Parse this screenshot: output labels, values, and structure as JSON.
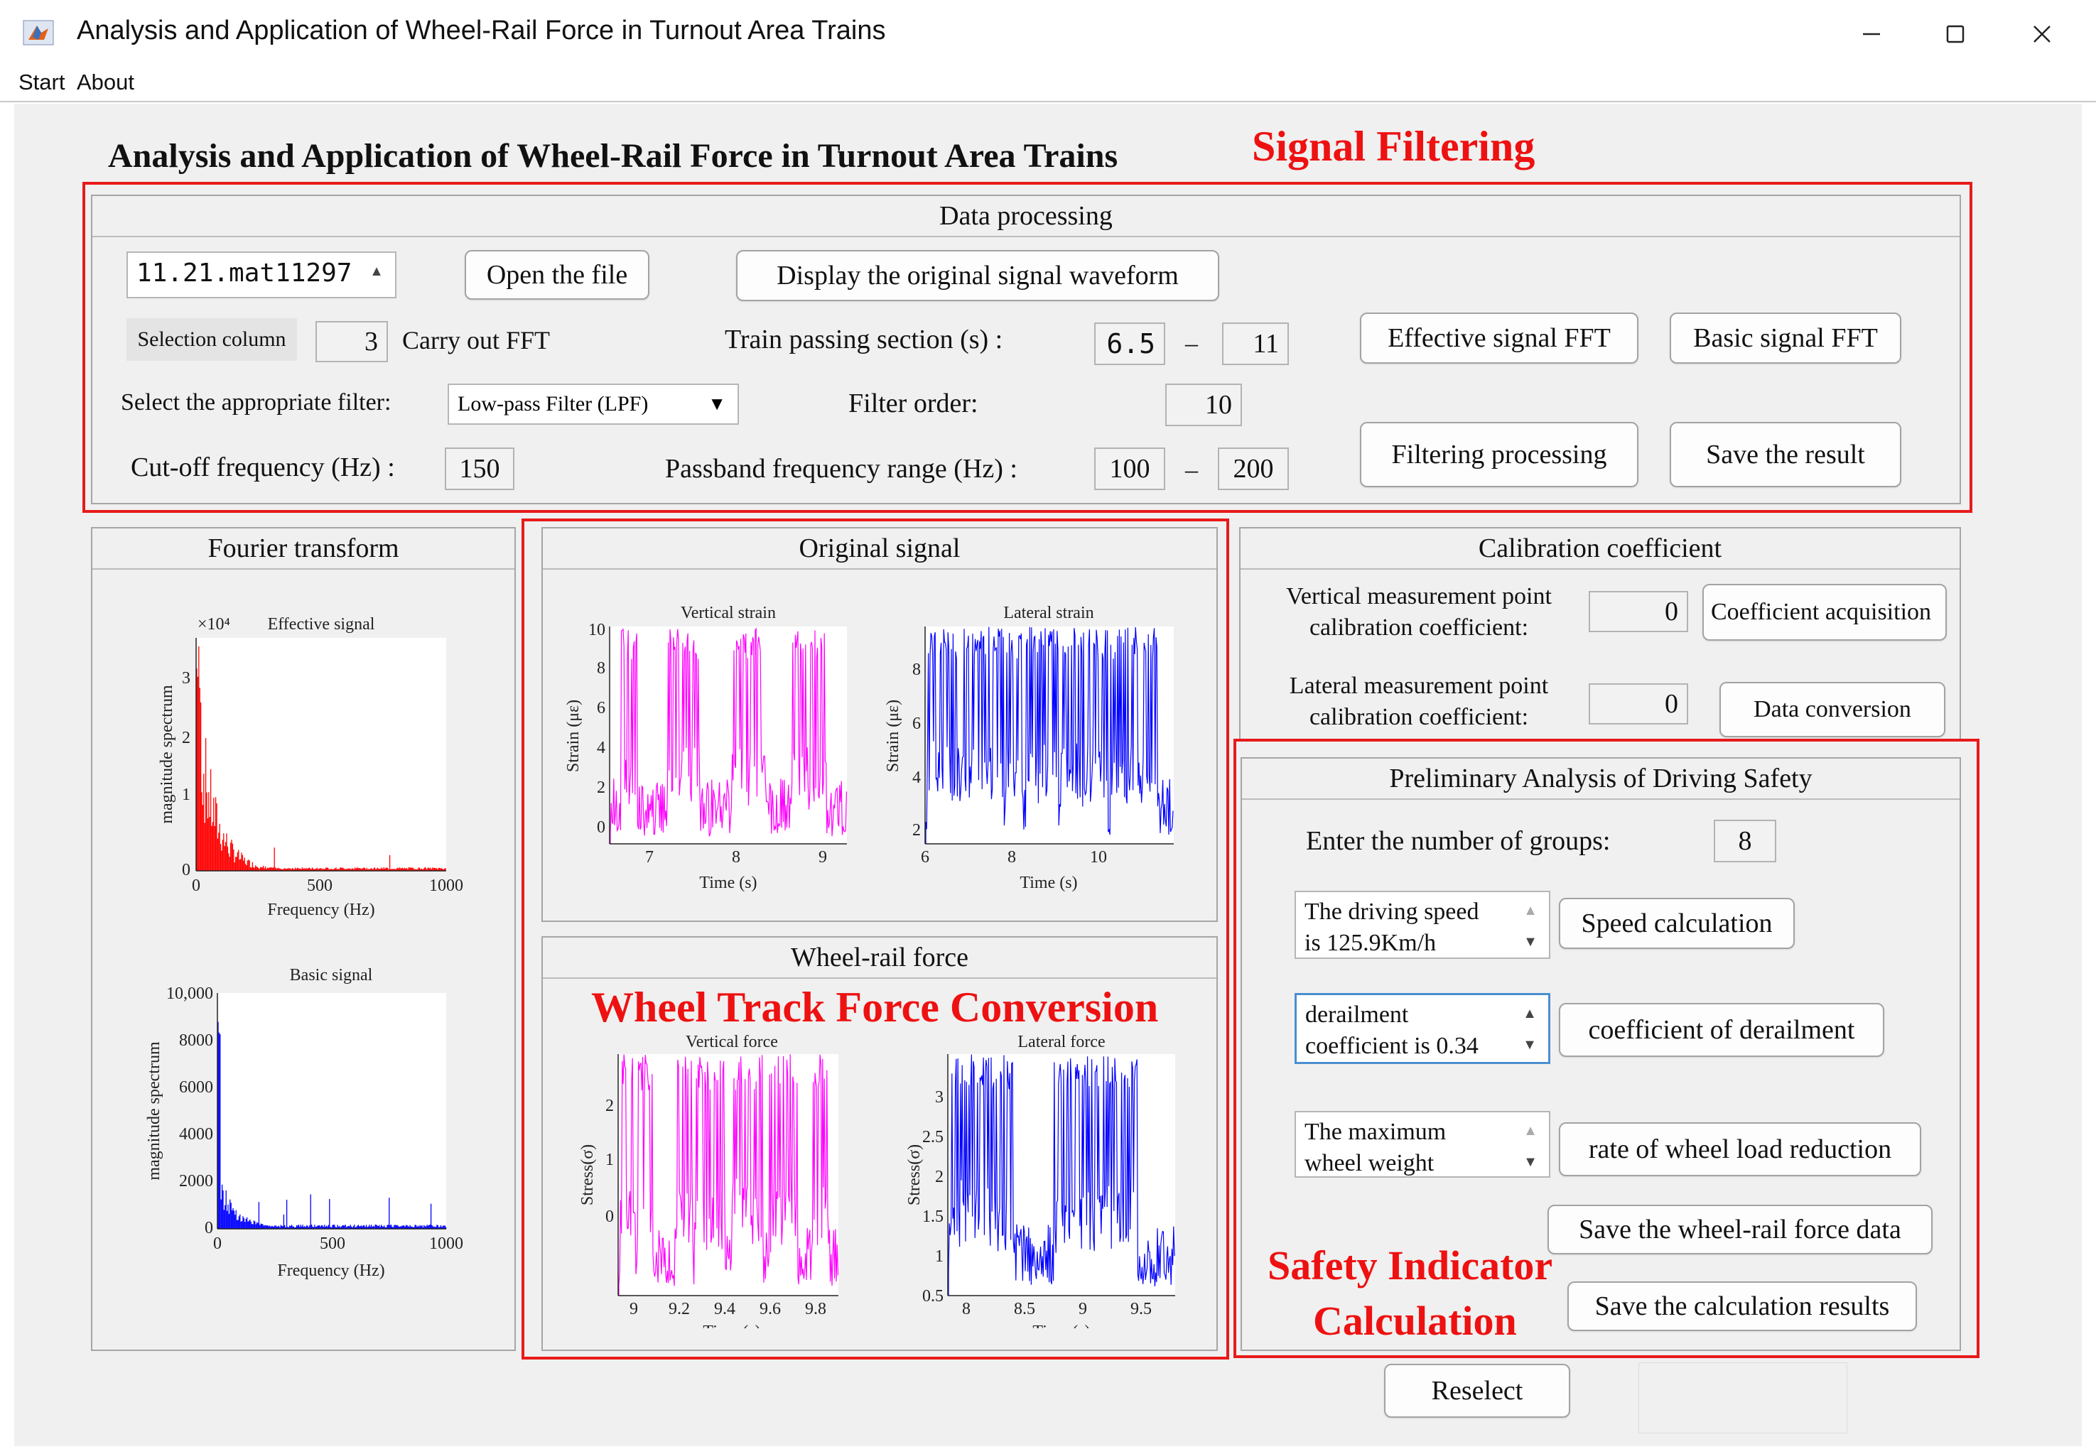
{
  "window": {
    "title": "Analysis and Application of Wheel-Rail Force in Turnout Area Trains",
    "app_icon": "matlab-icon",
    "controls": [
      "minimize-icon",
      "maximize-icon",
      "close-icon"
    ]
  },
  "menu": {
    "items": [
      "Start",
      "About"
    ]
  },
  "main_title": "Analysis and Application of Wheel-Rail Force in Turnout Area Trains",
  "annotations": {
    "signal_filtering": "Signal Filtering",
    "wheel_track": "Wheel Track Force Conversion",
    "safety_line1": "Safety Indicator",
    "safety_line2": "Calculation",
    "color": "#ee1111"
  },
  "data_processing": {
    "title": "Data processing",
    "file_spinner": "11.21.mat11297",
    "open_file": "Open the file",
    "display_waveform": "Display the original signal waveform",
    "selection_column_label": "Selection column",
    "selection_column_value": "3",
    "carry_out_fft": "Carry out FFT",
    "train_passing_label": "Train passing section (s) :",
    "train_from": "6.5",
    "dash": "–",
    "train_to": "11",
    "effective_fft": "Effective signal FFT",
    "basic_fft": "Basic signal FFT",
    "filter_label": "Select the appropriate filter:",
    "filter_value": "Low-pass Filter (LPF)",
    "filter_order_label": "Filter order:",
    "filter_order_value": "10",
    "cutoff_label": "Cut-off frequency (Hz) :",
    "cutoff_value": "150",
    "passband_label": "Passband frequency range (Hz) :",
    "passband_from": "100",
    "passband_to": "200",
    "filtering_processing": "Filtering processing",
    "save_result": "Save the result"
  },
  "fourier": {
    "title": "Fourier transform",
    "effective": {
      "title": "Effective signal",
      "exponent": "×10⁴",
      "ylabel": "magnitude spectrum",
      "xlabel": "Frequency (Hz)",
      "yticks": [
        "0",
        "1",
        "2",
        "3"
      ],
      "xticks": [
        "0",
        "500",
        "1000"
      ]
    },
    "basic": {
      "title": "Basic signal",
      "ylabel": "magnitude spectrum",
      "xlabel": "Frequency (Hz)",
      "yticks": [
        "0",
        "2000",
        "4000",
        "6000",
        "8000",
        "10,000"
      ],
      "xticks": [
        "0",
        "500",
        "1000"
      ]
    }
  },
  "original_signal": {
    "title": "Original signal",
    "vertical": {
      "title": "Vertical strain",
      "ylabel": "Strain (με)",
      "xlabel": "Time (s)",
      "yticks": [
        "0",
        "2",
        "4",
        "6",
        "8",
        "10"
      ],
      "xticks": [
        "7",
        "8",
        "9"
      ]
    },
    "lateral": {
      "title": "Lateral strain",
      "ylabel": "Strain (με)",
      "xlabel": "Time (s)",
      "yticks": [
        "2",
        "4",
        "6",
        "8"
      ],
      "xticks": [
        "6",
        "8",
        "10"
      ]
    }
  },
  "wheel_rail": {
    "title": "Wheel-rail force",
    "vertical": {
      "title": "Vertical force",
      "ylabel": "Stress(σ)",
      "xlabel": "Time (s)",
      "yticks": [
        "0",
        "1",
        "2"
      ],
      "xticks": [
        "9",
        "9.2",
        "9.4",
        "9.6",
        "9.8"
      ]
    },
    "lateral": {
      "title": "Lateral force",
      "ylabel": "Stress(σ)",
      "xlabel": "Time (s)",
      "yticks": [
        "0.5",
        "1",
        "1.5",
        "2",
        "2.5",
        "3"
      ],
      "xticks": [
        "8",
        "8.5",
        "9",
        "9.5"
      ]
    }
  },
  "calibration": {
    "title": "Calibration coefficient",
    "vertical_label1": "Vertical measurement point",
    "vertical_label2": "calibration coefficient:",
    "vertical_value": "0",
    "coefficient_acquisition": "Coefficient acquisition",
    "lateral_label1": "Lateral measurement point",
    "lateral_label2": "calibration coefficient:",
    "lateral_value": "0",
    "data_conversion": "Data conversion"
  },
  "safety": {
    "title": "Preliminary Analysis of Driving Safety",
    "groups_label": "Enter the number of groups:",
    "groups_value": "8",
    "speed_line1": "The driving speed",
    "speed_line2": "is 125.9Km/h",
    "speed_button": "Speed calculation",
    "derail_line1": "derailment",
    "derail_line2": "coefficient is 0.34",
    "derail_button": "coefficient of derailment",
    "wheel_line1": "The maximum",
    "wheel_line2": "wheel weight",
    "wheel_button": "rate of wheel load reduction",
    "save_wheel_rail": "Save the wheel-rail force data",
    "save_calc": "Save the calculation results"
  },
  "reselect": "Reselect",
  "colors": {
    "magenta": "#ff00ff",
    "blue": "#0000ff",
    "red": "#ff0000"
  }
}
